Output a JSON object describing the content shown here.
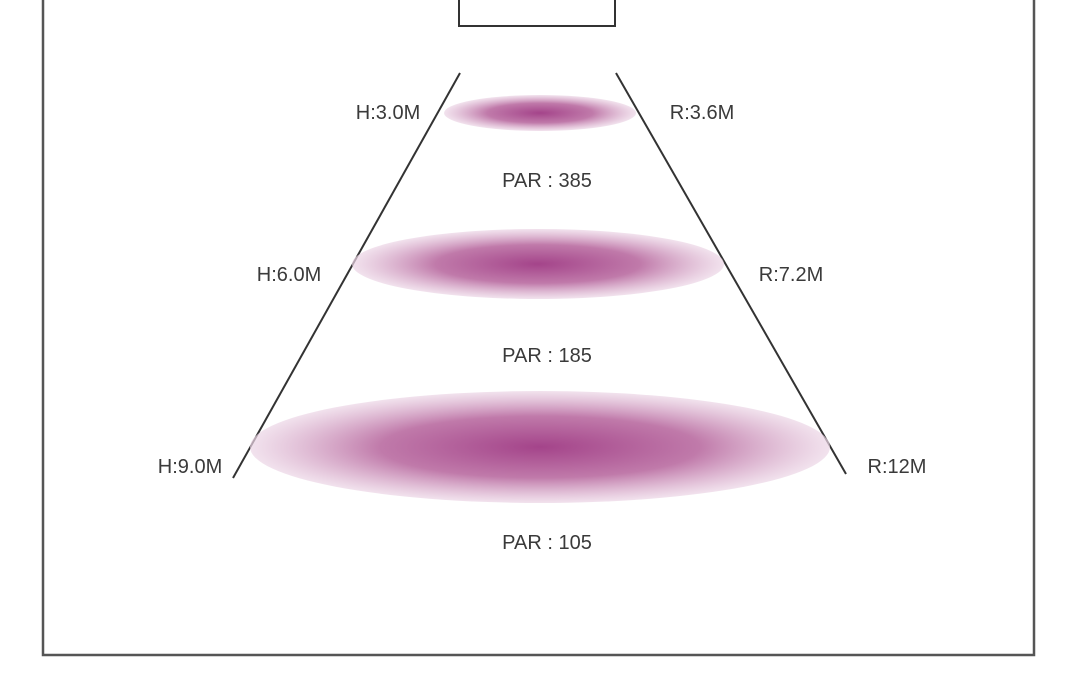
{
  "diagram": {
    "levels": [
      {
        "height_label": "H:3.0M",
        "radius_label": "R:3.6M",
        "par_label": "PAR : 385"
      },
      {
        "height_label": "H:6.0M",
        "radius_label": "R:7.2M",
        "par_label": "PAR : 185"
      },
      {
        "height_label": "H:9.0M",
        "radius_label": "R:12M",
        "par_label": "PAR : 105"
      }
    ],
    "colors": {
      "spot_center": "#a4448a",
      "spot_edge": "#ecd6e6",
      "line": "#333333"
    }
  }
}
